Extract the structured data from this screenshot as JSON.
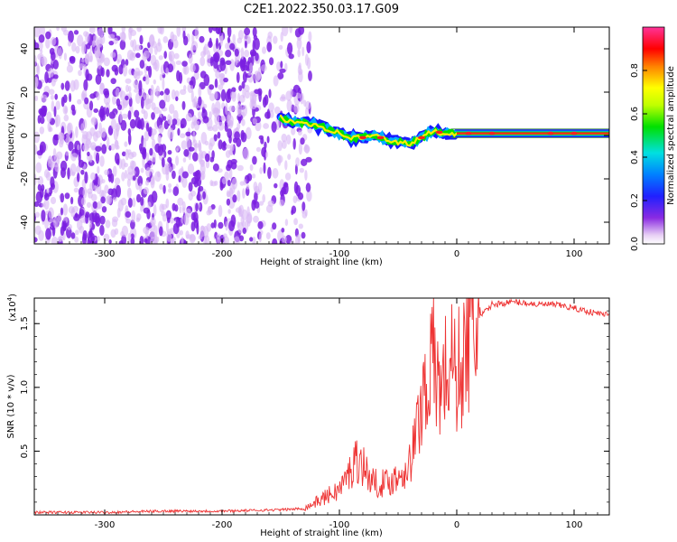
{
  "title": "C2E1.2022.350.03.17.G09",
  "colors": {
    "background": "#ffffff",
    "snr_line": "#ee3333",
    "cloud_purple": "#7a1fe0",
    "cloud_light": "#d9b8f5"
  },
  "chart_data": [
    {
      "type": "heatmap",
      "xlabel": "Height of straight line (km)",
      "ylabel": "Frequency (Hz)",
      "xlim": [
        -360,
        130
      ],
      "ylim": [
        -50,
        50
      ],
      "xticks": [
        -300,
        -200,
        -100,
        0,
        100
      ],
      "yticks": [
        -40,
        -20,
        0,
        20,
        40
      ],
      "noise_region_x": [
        -360,
        -125
      ],
      "signal_trace": {
        "x": [
          -150,
          -140,
          -130,
          -120,
          -110,
          -100,
          -90,
          -80,
          -70,
          -60,
          -50,
          -40,
          -30,
          -20,
          -10,
          0,
          10,
          30,
          60,
          90,
          120,
          130
        ],
        "frequency": [
          8,
          6,
          6,
          5,
          3,
          1,
          -1,
          -1,
          0,
          -2,
          -3,
          -4,
          -1,
          2,
          1,
          1,
          1,
          1,
          1,
          1,
          1,
          1
        ]
      },
      "colorbar": {
        "label": "Normalized spectral amplitude",
        "ticks": [
          0.0,
          0.2,
          0.4,
          0.6,
          0.8
        ],
        "range": [
          0,
          1
        ]
      }
    },
    {
      "type": "line",
      "xlabel": "Height of straight line (km)",
      "ylabel": "SNR (10 * v/v)",
      "scale_label": "(x10",
      "scale_exp": "4",
      "xlim": [
        -360,
        130
      ],
      "ylim": [
        0,
        1.7
      ],
      "xticks": [
        -300,
        -200,
        -100,
        0,
        100
      ],
      "yticks": [
        0.5,
        1.0,
        1.5
      ],
      "series": [
        {
          "x": [
            -360,
            -300,
            -250,
            -200,
            -150,
            -130,
            -120,
            -110,
            -100,
            -90,
            -85,
            -80,
            -75,
            -70,
            -60,
            -50,
            -45,
            -40,
            -35,
            -30,
            -25,
            -20,
            -15,
            -10,
            -5,
            0,
            5,
            10,
            15,
            20,
            25,
            30,
            40,
            50,
            60,
            70,
            80,
            90,
            100,
            110,
            120,
            130
          ],
          "values": [
            0.02,
            0.02,
            0.03,
            0.03,
            0.04,
            0.05,
            0.1,
            0.15,
            0.2,
            0.35,
            0.45,
            0.4,
            0.3,
            0.25,
            0.25,
            0.3,
            0.35,
            0.4,
            0.6,
            0.9,
            1.1,
            1.2,
            1.0,
            1.1,
            1.2,
            1.1,
            1.2,
            1.35,
            1.45,
            1.55,
            1.6,
            1.65,
            1.66,
            1.67,
            1.66,
            1.65,
            1.65,
            1.64,
            1.62,
            1.6,
            1.58,
            1.57
          ]
        }
      ]
    }
  ]
}
